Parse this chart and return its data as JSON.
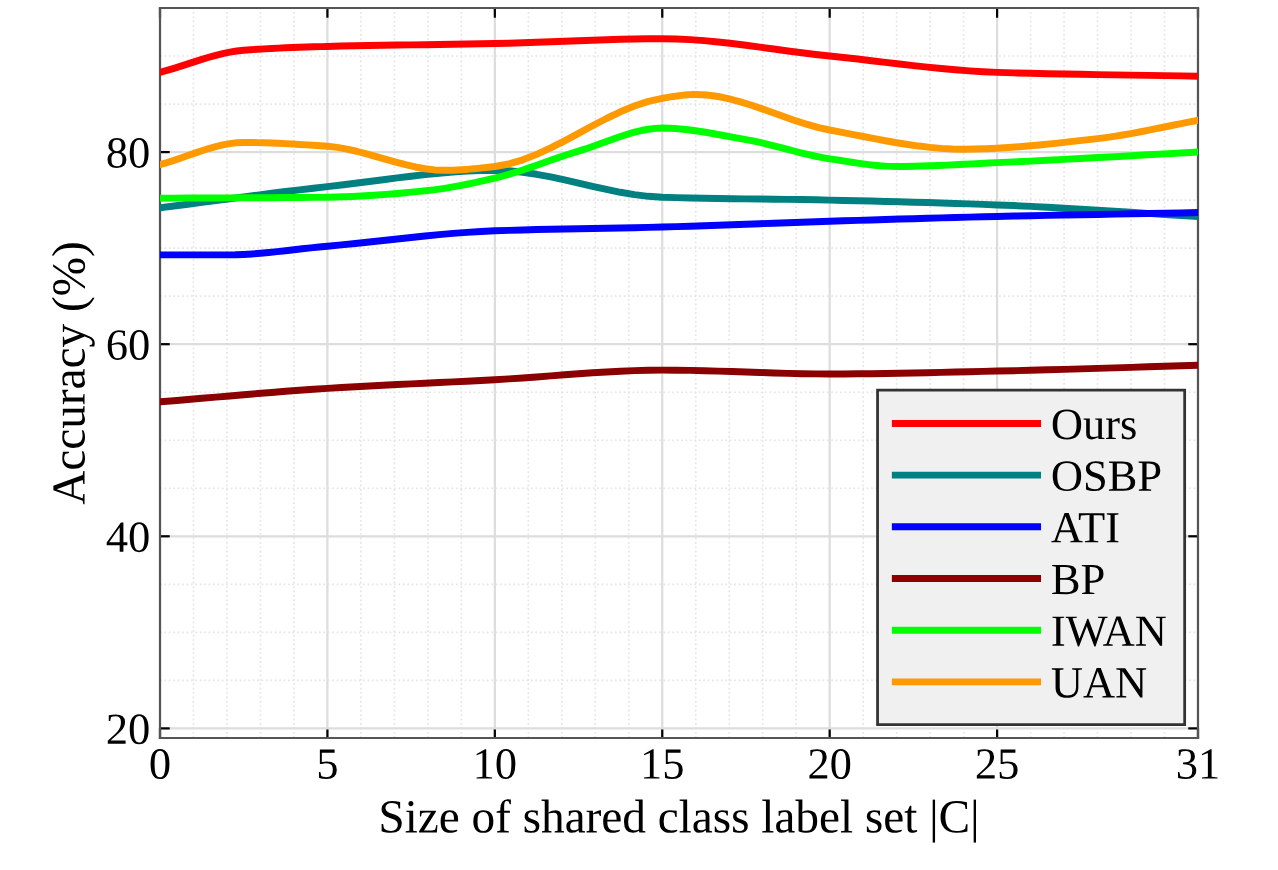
{
  "chart_data": {
    "type": "line",
    "xlabel": "Size of shared class label set |C|",
    "ylabel": "Accuracy (%)",
    "xlim": [
      0,
      31
    ],
    "xticks": [
      0,
      5,
      10,
      15,
      20,
      25,
      31
    ],
    "ylim": [
      19,
      95
    ],
    "yticks": [
      20,
      40,
      60,
      80
    ],
    "grid": true,
    "legend": "bottom right",
    "marker": "none",
    "line_style": "solid",
    "series": [
      {
        "name": "Ours",
        "color": "#ff0000",
        "x": [
          0,
          2.5,
          5,
          10,
          15,
          20,
          25,
          31
        ],
        "values": [
          88.3,
          90.6,
          91,
          91.3,
          91.8,
          90,
          88.3,
          87.9
        ]
      },
      {
        "name": "OSBP",
        "color": "#008080",
        "x": [
          0,
          5,
          10,
          15,
          20,
          25,
          31
        ],
        "values": [
          74.2,
          76.4,
          78.1,
          75.3,
          75,
          74.5,
          73.3
        ]
      },
      {
        "name": "ATI",
        "color": "#0000ff",
        "x": [
          0,
          2,
          5,
          10,
          15,
          20,
          25,
          31
        ],
        "values": [
          69.3,
          69.3,
          70.2,
          71.8,
          72.2,
          72.8,
          73.3,
          73.7
        ]
      },
      {
        "name": "BP",
        "color": "#8b0000",
        "x": [
          0,
          5,
          10,
          15,
          20,
          25,
          31
        ],
        "values": [
          54,
          55.4,
          56.3,
          57.3,
          56.9,
          57.2,
          57.8
        ]
      },
      {
        "name": "IWAN",
        "color": "#00ff00",
        "x": [
          0,
          5,
          8,
          10,
          12.5,
          15,
          17.5,
          20,
          22,
          25,
          31
        ],
        "values": [
          75.2,
          75.3,
          76,
          77.3,
          80.1,
          82.5,
          81.3,
          79.3,
          78.5,
          78.9,
          80
        ]
      },
      {
        "name": "UAN",
        "color": "#ff9900",
        "x": [
          0,
          2.5,
          5,
          8.5,
          10,
          15,
          16,
          20,
          24,
          28,
          31
        ],
        "values": [
          78.7,
          81,
          80.6,
          78.1,
          78.5,
          85.6,
          86,
          82.3,
          80.3,
          81.4,
          83.3
        ]
      }
    ]
  }
}
